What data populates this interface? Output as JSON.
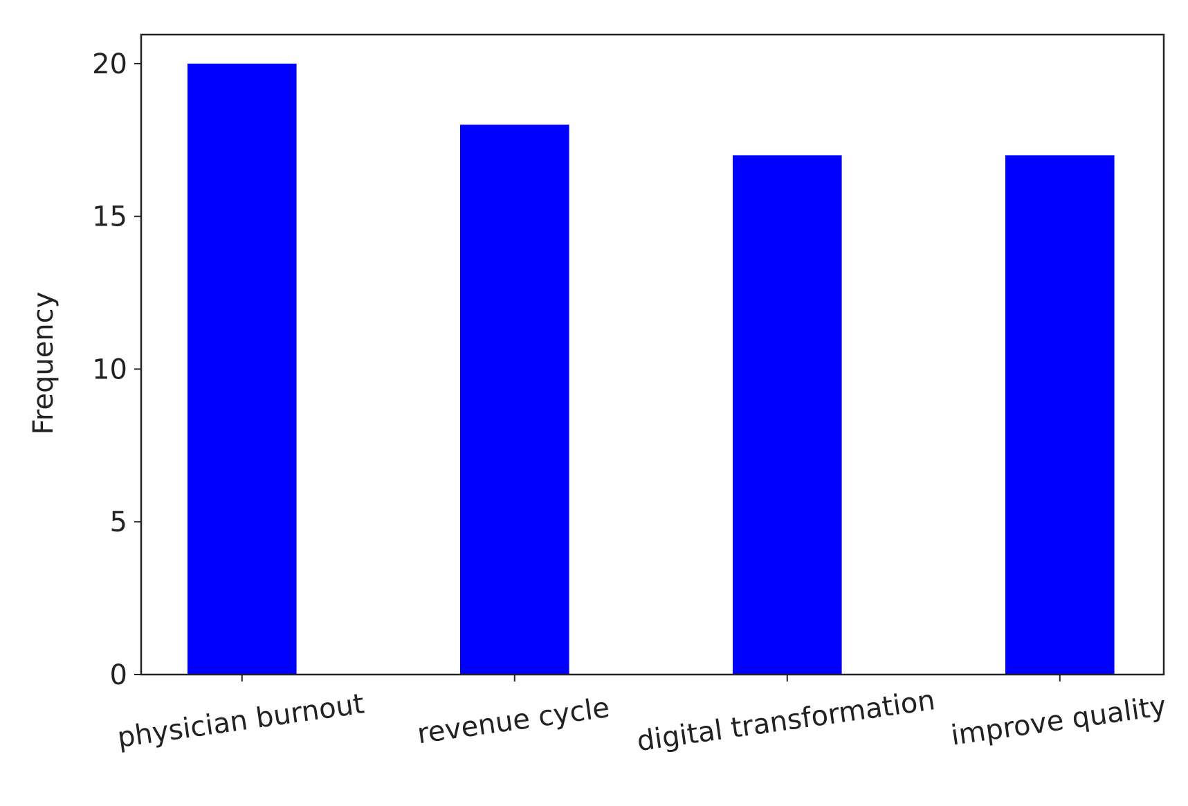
{
  "chart_data": {
    "type": "bar",
    "y_label": "Frequency",
    "categories": [
      "physician burnout",
      "revenue cycle",
      "digital transformation",
      "improve quality"
    ],
    "values": [
      20,
      18,
      17,
      17
    ],
    "color": "#0000ff",
    "ylim": [
      0,
      20.95
    ],
    "yticks": [
      0,
      5,
      10,
      15,
      20
    ]
  }
}
